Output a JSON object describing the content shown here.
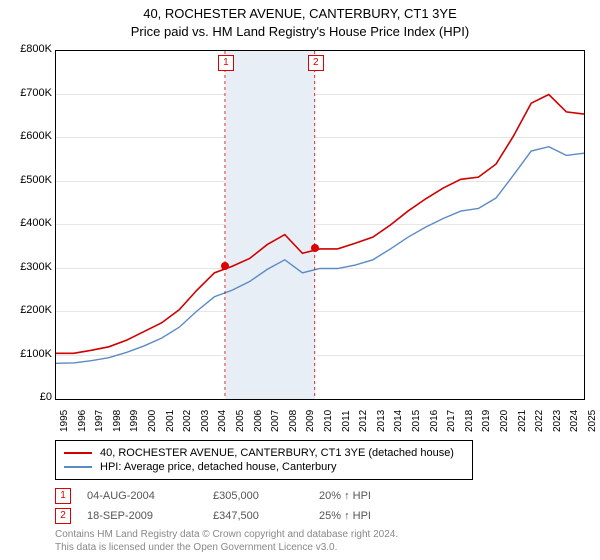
{
  "title_line1": "40, ROCHESTER AVENUE, CANTERBURY, CT1 3YE",
  "title_line2": "Price paid vs. HM Land Registry's House Price Index (HPI)",
  "chart": {
    "type": "line",
    "background_color": "#ffffff",
    "grid_color": "#e6e6e6",
    "band_color": "#e8eef6",
    "ylim": [
      0,
      800000
    ],
    "ytick_step": 100000,
    "ytick_labels": [
      "£0",
      "£100K",
      "£200K",
      "£300K",
      "£400K",
      "£500K",
      "£600K",
      "£700K",
      "£800K"
    ],
    "xlim": [
      1995,
      2025
    ],
    "xticks": [
      1995,
      1996,
      1997,
      1998,
      1999,
      2000,
      2001,
      2002,
      2003,
      2004,
      2005,
      2006,
      2007,
      2008,
      2009,
      2010,
      2011,
      2012,
      2013,
      2014,
      2015,
      2016,
      2017,
      2018,
      2019,
      2020,
      2021,
      2022,
      2023,
      2024,
      2025
    ],
    "series": [
      {
        "name": "property",
        "label": "40, ROCHESTER AVENUE, CANTERBURY, CT1 3YE (detached house)",
        "color": "#d00000",
        "line_width": 1.6,
        "y": [
          105000,
          105000,
          112000,
          120000,
          135000,
          155000,
          175000,
          205000,
          250000,
          290000,
          305000,
          323000,
          355000,
          378000,
          335000,
          345000,
          345000,
          358000,
          372000,
          400000,
          432000,
          460000,
          485000,
          505000,
          510000,
          540000,
          605000,
          680000,
          700000,
          660000,
          655000
        ]
      },
      {
        "name": "hpi",
        "label": "HPI: Average price, detached house, Canterbury",
        "color": "#5b8bc5",
        "line_width": 1.4,
        "y": [
          82000,
          83000,
          88000,
          95000,
          107000,
          122000,
          140000,
          165000,
          202000,
          235000,
          250000,
          270000,
          298000,
          320000,
          290000,
          300000,
          300000,
          308000,
          320000,
          345000,
          372000,
          395000,
          415000,
          432000,
          438000,
          462000,
          515000,
          570000,
          580000,
          560000,
          565000
        ]
      }
    ],
    "markers": [
      {
        "id": "1",
        "x": 2004.6,
        "box_y": 790000
      },
      {
        "id": "2",
        "x": 2009.7,
        "box_y": 790000
      }
    ],
    "sales_points": [
      {
        "x": 2004.6,
        "y": 305000
      },
      {
        "x": 2009.7,
        "y": 347500
      }
    ]
  },
  "legend": {
    "rows": [
      {
        "color": "#d00000",
        "label": "40, ROCHESTER AVENUE, CANTERBURY, CT1 3YE (detached house)"
      },
      {
        "color": "#5b8bc5",
        "label": "HPI: Average price, detached house, Canterbury"
      }
    ]
  },
  "transactions": [
    {
      "id": "1",
      "date": "04-AUG-2004",
      "price": "£305,000",
      "delta": "20% ↑ HPI"
    },
    {
      "id": "2",
      "date": "18-SEP-2009",
      "price": "£347,500",
      "delta": "25% ↑ HPI"
    }
  ],
  "footer_line1": "Contains HM Land Registry data © Crown copyright and database right 2024.",
  "footer_line2": "This data is licensed under the Open Government Licence v3.0."
}
